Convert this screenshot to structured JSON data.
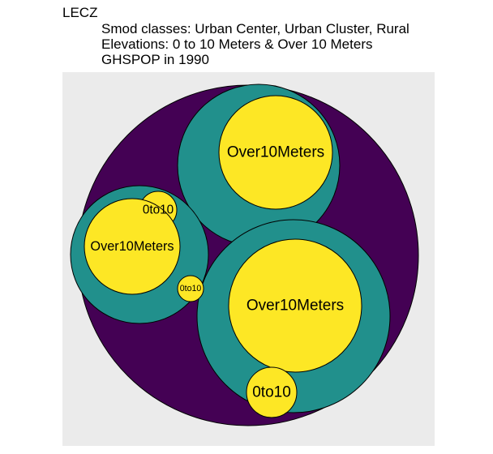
{
  "chart_data": {
    "type": "circle-packing",
    "title": "LECZ",
    "subtitle": [
      "Smod classes: Urban Center, Urban Cluster, Rural",
      "Elevations: 0 to 10 Meters & Over 10 Meters",
      "GHSPOP in 1990"
    ],
    "background_color": "#EBEBEB",
    "levels": [
      {
        "level": "root",
        "color": "#440154"
      },
      {
        "level": "smod",
        "color": "#21908C"
      },
      {
        "level": "elevation",
        "color": "#FDE725"
      }
    ],
    "groups": [
      {
        "leaves": [
          {
            "label": "Over10Meters",
            "value": 1.0
          },
          {
            "label": "0to10",
            "value": 0.045
          }
        ]
      },
      {
        "leaves": [
          {
            "label": "Over10Meters",
            "value": 0.72
          },
          {
            "label": "0to10",
            "value": 0.024
          }
        ]
      },
      {
        "leaves": [
          {
            "label": "Over10Meters",
            "value": 1.34
          },
          {
            "label": "0to10",
            "value": 0.088
          }
        ]
      }
    ]
  }
}
